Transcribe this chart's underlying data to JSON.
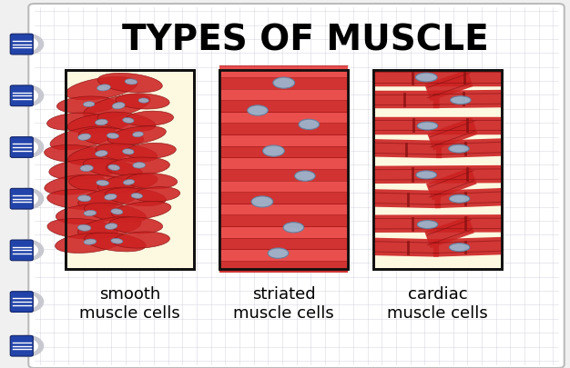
{
  "title": "TYPES OF MUSCLE",
  "title_fontsize": 28,
  "title_fontweight": "black",
  "labels": [
    "smooth\nmuscle cells",
    "striated\nmuscle cells",
    "cardiac\nmuscle cells"
  ],
  "label_fontsize": 13,
  "background_color": "#f0f0f0",
  "paper_color": "#ffffff",
  "grid_color": "#c8c8d8",
  "box_bg_color": "#fdf8e0",
  "box_border_color": "#111111",
  "muscle_red": "#cc2222",
  "muscle_red_light": "#e84040",
  "muscle_red_dark": "#881111",
  "nucleus_color": "#9ab8d0",
  "nucleus_edge": "#6080a0",
  "figsize": [
    6.26,
    4.05
  ],
  "dpi": 100,
  "binder_color_ring": "#c8c8d0",
  "binder_color_clip": "#2244aa"
}
